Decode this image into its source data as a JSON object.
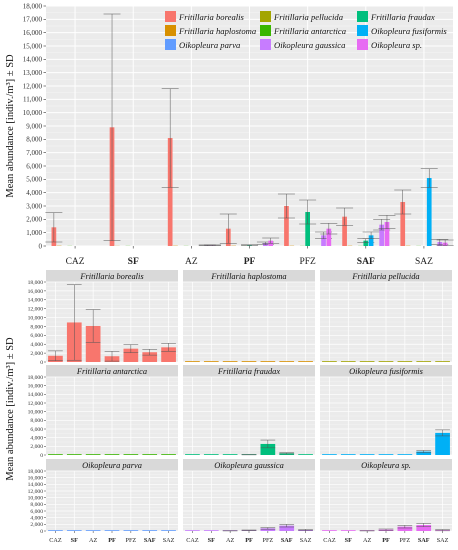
{
  "top_chart": {
    "ylabel": "Mean abundance [indiv./m³] ± SD",
    "legend": [
      {
        "name": "Fritillaria borealis",
        "color": "#F8766D"
      },
      {
        "name": "Fritillaria pellucida",
        "color": "#A3A500"
      },
      {
        "name": "Fritillaria fraudax",
        "color": "#00BF7D"
      },
      {
        "name": "Fritillaria haplostoma",
        "color": "#D89000"
      },
      {
        "name": "Fritillaria antarctica",
        "color": "#39B600"
      },
      {
        "name": "Oikopleura fusiformis",
        "color": "#00B0F6"
      },
      {
        "name": "Oikopleura parva",
        "color": "#619CFF"
      },
      {
        "name": "Oikopleura gaussica",
        "color": "#C77CFF"
      },
      {
        "name": "Oikopleura sp.",
        "color": "#E76BF3"
      }
    ],
    "yticks": [
      "0",
      "1,000",
      "2,000",
      "3,000",
      "4,000",
      "5,000",
      "6,000",
      "7,000",
      "8,000",
      "9,000",
      "10,000",
      "11,000",
      "12,000",
      "13,000",
      "14,000",
      "15,000",
      "16,000",
      "17,000",
      "18,000"
    ]
  },
  "facet_chart": {
    "ylabel": "Mean abundance [indiv./m³] ± SD",
    "yticks": [
      "0",
      "2,000",
      "4,000",
      "6,000",
      "8,000",
      "10,000",
      "12,000",
      "14,000",
      "16,000",
      "18,000"
    ],
    "panels": [
      {
        "title": "Fritillaria borealis",
        "species_index": 0
      },
      {
        "title": "Fritillaria haplostoma",
        "species_index": 1
      },
      {
        "title": "Fritillaria pellucida",
        "species_index": 2
      },
      {
        "title": "Fritillaria antarctica",
        "species_index": 3
      },
      {
        "title": "Fritillaria fraudax",
        "species_index": 4
      },
      {
        "title": "Oikopleura fusiformis",
        "species_index": 5
      },
      {
        "title": "Oikopleura parva",
        "species_index": 6
      },
      {
        "title": "Oikopleura gaussica",
        "species_index": 7
      },
      {
        "title": "Oikopleura sp.",
        "species_index": 8
      }
    ]
  },
  "chart_data": {
    "type": "bar",
    "categories": [
      "CAZ",
      "SF",
      "AZ",
      "PF",
      "PFZ",
      "SAF",
      "SAZ"
    ],
    "bold_categories": [
      "SF",
      "PF",
      "SAF"
    ],
    "ylim": [
      0,
      18000
    ],
    "grid": true,
    "error_bars": "± SD",
    "series": [
      {
        "name": "Fritillaria borealis",
        "color": "#F8766D",
        "values": [
          1400,
          8900,
          8100,
          1300,
          3000,
          2200,
          3300
        ],
        "sd": [
          1100,
          8500,
          3700,
          1100,
          900,
          650,
          900
        ]
      },
      {
        "name": "Fritillaria haplostoma",
        "color": "#D89000",
        "values": [
          20,
          10,
          20,
          20,
          20,
          20,
          20
        ],
        "sd": [
          0,
          0,
          0,
          0,
          0,
          0,
          0
        ]
      },
      {
        "name": "Fritillaria pellucida",
        "color": "#A3A500",
        "values": [
          0,
          0,
          0,
          0,
          0,
          0,
          0
        ],
        "sd": [
          0,
          0,
          0,
          0,
          0,
          0,
          0
        ]
      },
      {
        "name": "Fritillaria antarctica",
        "color": "#39B600",
        "values": [
          10,
          10,
          10,
          10,
          10,
          10,
          10
        ],
        "sd": [
          0,
          0,
          0,
          0,
          0,
          0,
          0
        ]
      },
      {
        "name": "Fritillaria fraudax",
        "color": "#00BF7D",
        "values": [
          0,
          0,
          0,
          60,
          2550,
          400,
          0
        ],
        "sd": [
          0,
          0,
          0,
          30,
          900,
          150,
          0
        ]
      },
      {
        "name": "Oikopleura fusiformis",
        "color": "#00B0F6",
        "values": [
          0,
          0,
          0,
          0,
          0,
          800,
          5100
        ],
        "sd": [
          0,
          0,
          0,
          0,
          0,
          250,
          700
        ]
      },
      {
        "name": "Oikopleura parva",
        "color": "#619CFF",
        "values": [
          0,
          0,
          0,
          0,
          0,
          0,
          0
        ],
        "sd": [
          0,
          0,
          0,
          0,
          0,
          0,
          0
        ]
      },
      {
        "name": "Oikopleura gaussica",
        "color": "#C77CFF",
        "values": [
          0,
          0,
          50,
          200,
          800,
          1600,
          300
        ],
        "sd": [
          0,
          0,
          30,
          100,
          250,
          400,
          200
        ]
      },
      {
        "name": "Oikopleura sp.",
        "color": "#E76BF3",
        "values": [
          0,
          0,
          50,
          400,
          1300,
          1800,
          250
        ],
        "sd": [
          0,
          0,
          30,
          200,
          400,
          500,
          200
        ]
      }
    ]
  }
}
